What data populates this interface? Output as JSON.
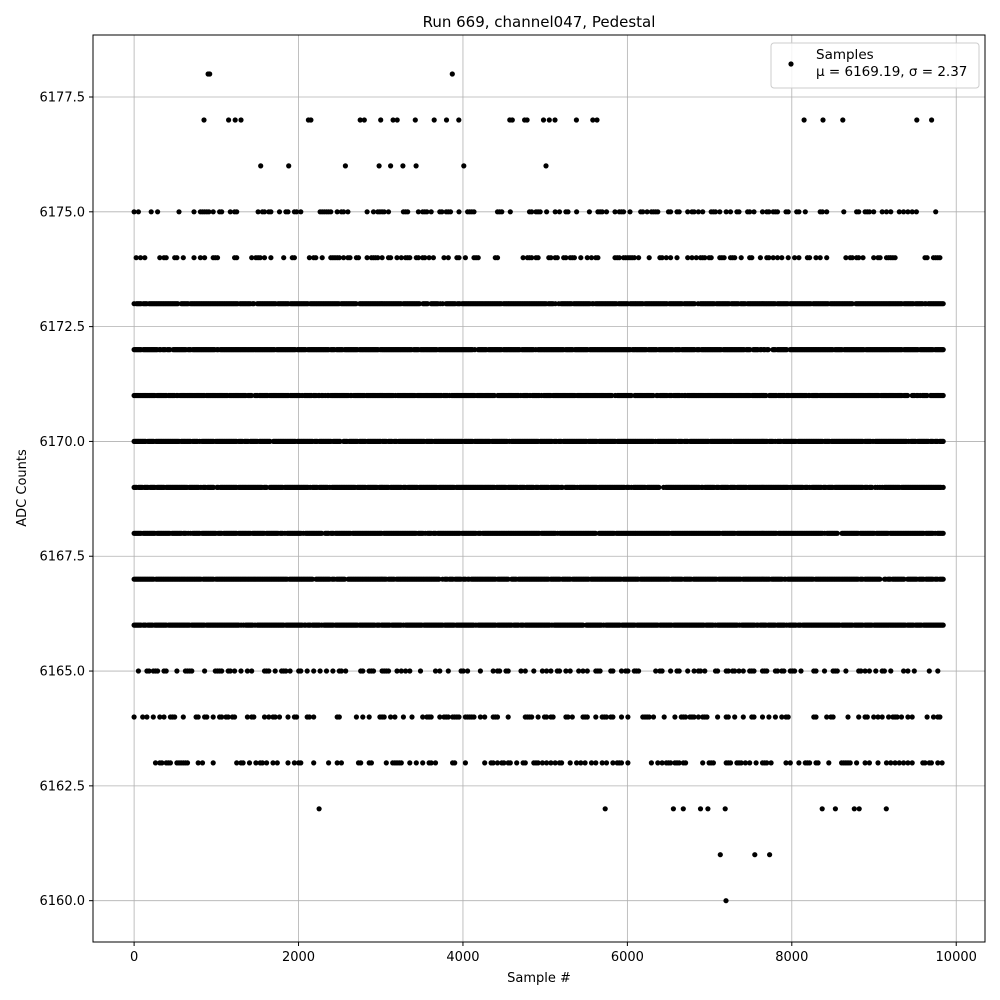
{
  "chart_data": {
    "type": "scatter",
    "title": "Run 669, channel047, Pedestal",
    "xlabel": "Sample #",
    "ylabel": "ADC Counts",
    "xlim": [
      -500,
      10350
    ],
    "ylim": [
      6159.1,
      6178.85
    ],
    "xticks": [
      0,
      2000,
      4000,
      6000,
      8000,
      10000
    ],
    "xtick_labels": [
      "0",
      "2000",
      "4000",
      "6000",
      "8000",
      "10000"
    ],
    "yticks": [
      6160.0,
      6162.5,
      6165.0,
      6167.5,
      6170.0,
      6172.5,
      6175.0,
      6177.5
    ],
    "ytick_labels": [
      "6160.0",
      "6162.5",
      "6165.0",
      "6167.5",
      "6170.0",
      "6172.5",
      "6175.0",
      "6177.5"
    ],
    "grid": true,
    "legend_position": "top-right",
    "marker_color": "#000000",
    "series": [
      {
        "name": "Samples",
        "stats_label": "μ = 6169.19, σ = 2.37",
        "levels": [
          {
            "y": 6173,
            "coverage": "dense",
            "x_range": [
              0,
              9850
            ]
          },
          {
            "y": 6172,
            "coverage": "dense",
            "x_range": [
              0,
              9850
            ]
          },
          {
            "y": 6171,
            "coverage": "dense",
            "x_range": [
              0,
              9850
            ]
          },
          {
            "y": 6170,
            "coverage": "dense",
            "x_range": [
              0,
              9850
            ]
          },
          {
            "y": 6169,
            "coverage": "dense",
            "x_range": [
              0,
              9850
            ]
          },
          {
            "y": 6168,
            "coverage": "dense",
            "x_range": [
              0,
              9850
            ]
          },
          {
            "y": 6167,
            "coverage": "dense",
            "x_range": [
              0,
              9850
            ]
          },
          {
            "y": 6166,
            "coverage": "dense",
            "x_range": [
              0,
              9850
            ]
          },
          {
            "y": 6174,
            "coverage": "sparse",
            "x_range": [
              0,
              9850
            ]
          },
          {
            "y": 6165,
            "coverage": "sparse",
            "x_range": [
              0,
              9850
            ]
          },
          {
            "y": 6164,
            "coverage": "sparse",
            "x_range": [
              0,
              9850
            ]
          },
          {
            "y": 6175,
            "coverage": "sparse",
            "x_range": [
              0,
              9850
            ]
          },
          {
            "y": 6163,
            "coverage": "sparse",
            "x_range": [
              0,
              9850
            ]
          }
        ],
        "points": [
          {
            "x": 900,
            "y": 6178
          },
          {
            "x": 920,
            "y": 6178
          },
          {
            "x": 3870,
            "y": 6178
          },
          {
            "x": 850,
            "y": 6177
          },
          {
            "x": 1150,
            "y": 6177
          },
          {
            "x": 1230,
            "y": 6177
          },
          {
            "x": 1300,
            "y": 6177
          },
          {
            "x": 2120,
            "y": 6177
          },
          {
            "x": 2150,
            "y": 6177
          },
          {
            "x": 2750,
            "y": 6177
          },
          {
            "x": 2800,
            "y": 6177
          },
          {
            "x": 3000,
            "y": 6177
          },
          {
            "x": 3150,
            "y": 6177
          },
          {
            "x": 3200,
            "y": 6177
          },
          {
            "x": 3420,
            "y": 6177
          },
          {
            "x": 3650,
            "y": 6177
          },
          {
            "x": 3800,
            "y": 6177
          },
          {
            "x": 3950,
            "y": 6177
          },
          {
            "x": 4570,
            "y": 6177
          },
          {
            "x": 4600,
            "y": 6177
          },
          {
            "x": 4750,
            "y": 6177
          },
          {
            "x": 4780,
            "y": 6177
          },
          {
            "x": 4980,
            "y": 6177
          },
          {
            "x": 5050,
            "y": 6177
          },
          {
            "x": 5120,
            "y": 6177
          },
          {
            "x": 5380,
            "y": 6177
          },
          {
            "x": 5580,
            "y": 6177
          },
          {
            "x": 5630,
            "y": 6177
          },
          {
            "x": 8150,
            "y": 6177
          },
          {
            "x": 8380,
            "y": 6177
          },
          {
            "x": 8620,
            "y": 6177
          },
          {
            "x": 9520,
            "y": 6177
          },
          {
            "x": 9700,
            "y": 6177
          },
          {
            "x": 1540,
            "y": 6176
          },
          {
            "x": 1880,
            "y": 6176
          },
          {
            "x": 2570,
            "y": 6176
          },
          {
            "x": 2980,
            "y": 6176
          },
          {
            "x": 3120,
            "y": 6176
          },
          {
            "x": 3270,
            "y": 6176
          },
          {
            "x": 3430,
            "y": 6176
          },
          {
            "x": 4010,
            "y": 6176
          },
          {
            "x": 5010,
            "y": 6176
          },
          {
            "x": 6560,
            "y": 6162
          },
          {
            "x": 6680,
            "y": 6162
          },
          {
            "x": 6890,
            "y": 6162
          },
          {
            "x": 6980,
            "y": 6162
          },
          {
            "x": 7190,
            "y": 6162
          },
          {
            "x": 8370,
            "y": 6162
          },
          {
            "x": 8530,
            "y": 6162
          },
          {
            "x": 8760,
            "y": 6162
          },
          {
            "x": 8820,
            "y": 6162
          },
          {
            "x": 9150,
            "y": 6162
          },
          {
            "x": 2250,
            "y": 6162
          },
          {
            "x": 5730,
            "y": 6162
          },
          {
            "x": 7130,
            "y": 6161
          },
          {
            "x": 7550,
            "y": 6161
          },
          {
            "x": 7730,
            "y": 6161
          },
          {
            "x": 7200,
            "y": 6160
          }
        ]
      }
    ]
  }
}
